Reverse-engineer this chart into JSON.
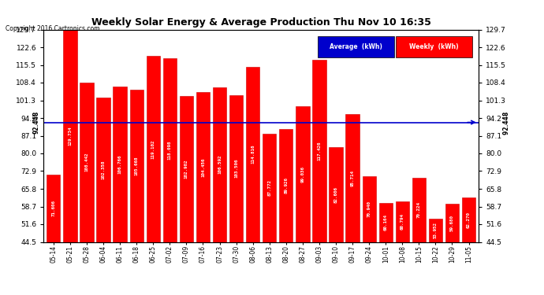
{
  "title": "Weekly Solar Energy & Average Production Thu Nov 10 16:35",
  "copyright": "Copyright 2016 Cartronics.com",
  "categories": [
    "05-14",
    "05-21",
    "05-28",
    "06-04",
    "06-11",
    "06-18",
    "06-25",
    "07-02",
    "07-09",
    "07-16",
    "07-23",
    "07-30",
    "08-06",
    "08-13",
    "08-20",
    "08-27",
    "09-03",
    "09-10",
    "09-17",
    "09-24",
    "10-01",
    "10-08",
    "10-15",
    "10-22",
    "10-29",
    "11-05"
  ],
  "values": [
    71.606,
    129.734,
    108.442,
    102.358,
    106.766,
    105.668,
    119.102,
    118.098,
    102.902,
    104.456,
    106.592,
    103.506,
    114.816,
    87.772,
    89.926,
    99.036,
    117.426,
    82.606,
    95.714,
    70.94,
    60.164,
    60.794,
    70.224,
    53.952,
    59.68,
    62.27
  ],
  "average": 92.448,
  "bar_color": "#FF0000",
  "bar_edge_color": "#CC0000",
  "average_line_color": "#0000CC",
  "background_color": "#FFFFFF",
  "grid_color": "#AAAAAA",
  "ymin": 44.5,
  "ymax": 129.7,
  "yticks": [
    44.5,
    51.6,
    58.7,
    65.8,
    72.9,
    80.0,
    87.1,
    94.2,
    101.3,
    108.4,
    115.5,
    122.6,
    129.7
  ],
  "legend_avg_bg": "#0000CC",
  "legend_weekly_bg": "#FF0000",
  "legend_avg_text": "Average  (kWh)",
  "legend_weekly_text": "Weekly  (kWh)"
}
